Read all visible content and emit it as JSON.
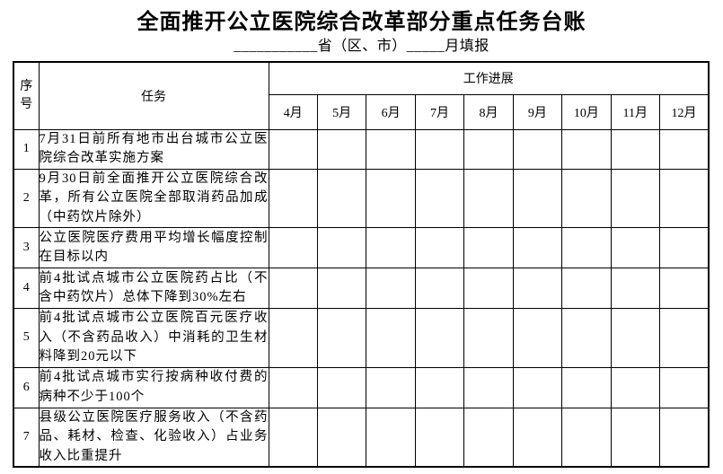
{
  "page": {
    "title": "全面推开公立医院综合改革部分重点任务台账",
    "subtitle": "___________省（区、市）_____月填报"
  },
  "table": {
    "headers": {
      "index": "序号",
      "task": "任务",
      "progress": "工作进展",
      "months": [
        "4月",
        "5月",
        "6月",
        "7月",
        "8月",
        "9月",
        "10月",
        "11月",
        "12月"
      ]
    },
    "rows": [
      {
        "no": "1",
        "task": "7月31日前所有地市出台城市公立医院综合改革实施方案"
      },
      {
        "no": "2",
        "task": "9月30日前全面推开公立医院综合改革，所有公立医院全部取消药品加成（中药饮片除外）"
      },
      {
        "no": "3",
        "task": "公立医院医疗费用平均增长幅度控制在目标以内"
      },
      {
        "no": "4",
        "task": "前4批试点城市公立医院药占比（不含中药饮片）总体下降到30%左右"
      },
      {
        "no": "5",
        "task": "前4批试点城市公立医院百元医疗收入（不含药品收入）中消耗的卫生材料降到20元以下"
      },
      {
        "no": "6",
        "task": "前4批试点城市实行按病种收付费的病种不少于100个"
      },
      {
        "no": "7",
        "task": "县级公立医院医疗服务收入（不含药品、耗材、检查、化验收入）占业务收入比重提升"
      }
    ]
  }
}
